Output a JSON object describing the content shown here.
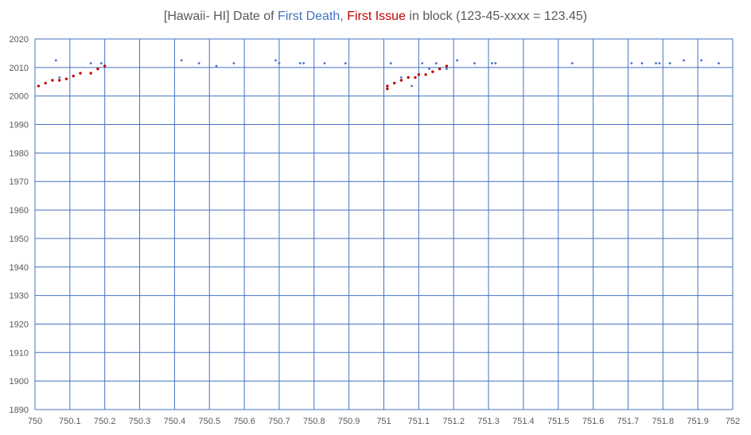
{
  "chart_data": {
    "type": "scatter",
    "title": {
      "prefix": "[Hawaii- HI] Date of ",
      "first_death": "First Death",
      "separator": ", ",
      "first_issue": "First Issue",
      "suffix": " in block (123-45-xxxx = 123.45)"
    },
    "xlim": [
      750,
      752
    ],
    "ylim": [
      1890,
      2020
    ],
    "x_ticks": [
      "750",
      "750.1",
      "750.2",
      "750.3",
      "750.4",
      "750.5",
      "750.6",
      "750.7",
      "750.8",
      "750.9",
      "751",
      "751.1",
      "751.2",
      "751.3",
      "751.4",
      "751.5",
      "751.6",
      "751.7",
      "751.8",
      "751.9",
      "752"
    ],
    "y_ticks": [
      "2020",
      "2010",
      "2000",
      "1990",
      "1980",
      "1970",
      "1960",
      "1950",
      "1940",
      "1930",
      "1920",
      "1910",
      "1900",
      "1890"
    ],
    "grid": true,
    "colors": {
      "first_death": "#4472c4",
      "first_issue": "#c00000",
      "grid": "#4472c4",
      "text": "#595959"
    },
    "series": [
      {
        "name": "First Death",
        "points": [
          [
            750.06,
            2012.5
          ],
          [
            750.07,
            2006.5
          ],
          [
            750.16,
            2011.5
          ],
          [
            750.19,
            2011.5
          ],
          [
            750.42,
            2012.5
          ],
          [
            750.47,
            2011.5
          ],
          [
            750.52,
            2010.5
          ],
          [
            750.57,
            2011.5
          ],
          [
            750.69,
            2012.5
          ],
          [
            750.7,
            2011.5
          ],
          [
            750.76,
            2011.5
          ],
          [
            750.77,
            2011.5
          ],
          [
            750.83,
            2011.5
          ],
          [
            750.89,
            2011.5
          ],
          [
            751.02,
            2011.5
          ],
          [
            751.05,
            2006.5
          ],
          [
            751.08,
            2003.5
          ],
          [
            751.11,
            2011.5
          ],
          [
            751.13,
            2009.5
          ],
          [
            751.15,
            2011.5
          ],
          [
            751.18,
            2009.5
          ],
          [
            751.21,
            2012.5
          ],
          [
            751.26,
            2011.5
          ],
          [
            751.31,
            2011.5
          ],
          [
            751.32,
            2011.5
          ],
          [
            751.54,
            2011.5
          ],
          [
            751.71,
            2011.5
          ],
          [
            751.74,
            2011.5
          ],
          [
            751.78,
            2011.5
          ],
          [
            751.79,
            2011.5
          ],
          [
            751.82,
            2011.5
          ],
          [
            751.86,
            2012.5
          ],
          [
            751.91,
            2012.5
          ],
          [
            751.96,
            2011.5
          ]
        ]
      },
      {
        "name": "First Issue",
        "points": [
          [
            750.01,
            2003.5
          ],
          [
            750.03,
            2004.5
          ],
          [
            750.05,
            2005.5
          ],
          [
            750.07,
            2005.5
          ],
          [
            750.09,
            2006
          ],
          [
            750.11,
            2007
          ],
          [
            750.13,
            2008
          ],
          [
            750.16,
            2008
          ],
          [
            750.18,
            2009.5
          ],
          [
            750.2,
            2010.5
          ],
          [
            751.01,
            2003.5
          ],
          [
            751.01,
            2002.5
          ],
          [
            751.03,
            2004.5
          ],
          [
            751.05,
            2005.5
          ],
          [
            751.07,
            2006.5
          ],
          [
            751.09,
            2006.5
          ],
          [
            751.1,
            2007.5
          ],
          [
            751.12,
            2007.5
          ],
          [
            751.14,
            2008.5
          ],
          [
            751.16,
            2009.5
          ],
          [
            751.18,
            2010.5
          ]
        ]
      }
    ]
  }
}
